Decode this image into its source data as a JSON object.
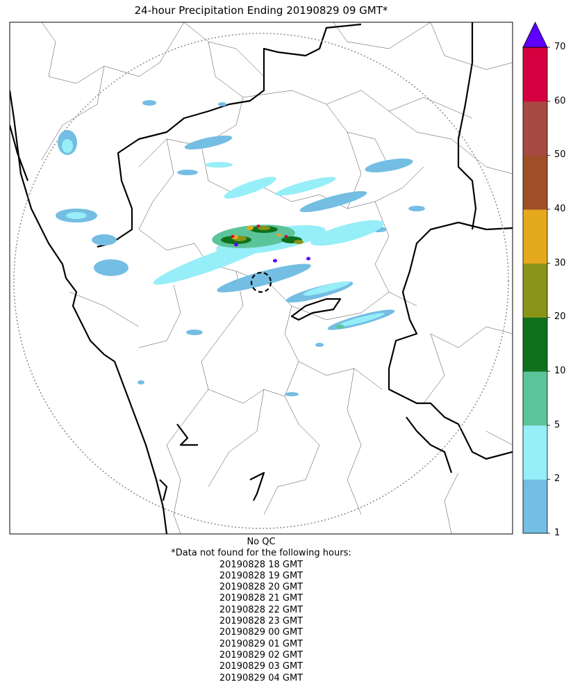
{
  "title": "24-hour Precipitation Ending 20190829 09 GMT*",
  "colorbar": {
    "ticks": [
      "1",
      "2",
      "5",
      "10",
      "20",
      "30",
      "40",
      "50",
      "60",
      "70"
    ],
    "colors": [
      "#74bde3",
      "#96eef8",
      "#5cc49a",
      "#0f711b",
      "#8a9418",
      "#e5a91d",
      "#9e4f27",
      "#a64a42",
      "#d5003f"
    ],
    "extend_color": "#5d00ff"
  },
  "footer": {
    "qc": "No QC",
    "note": "*Data not found for the following hours:",
    "hours": [
      "20190828 18 GMT",
      "20190828 19 GMT",
      "20190828 20 GMT",
      "20190828 21 GMT",
      "20190828 22 GMT",
      "20190828 23 GMT",
      "20190829 00 GMT",
      "20190829 01 GMT",
      "20190829 02 GMT",
      "20190829 03 GMT",
      "20190829 04 GMT"
    ]
  }
}
